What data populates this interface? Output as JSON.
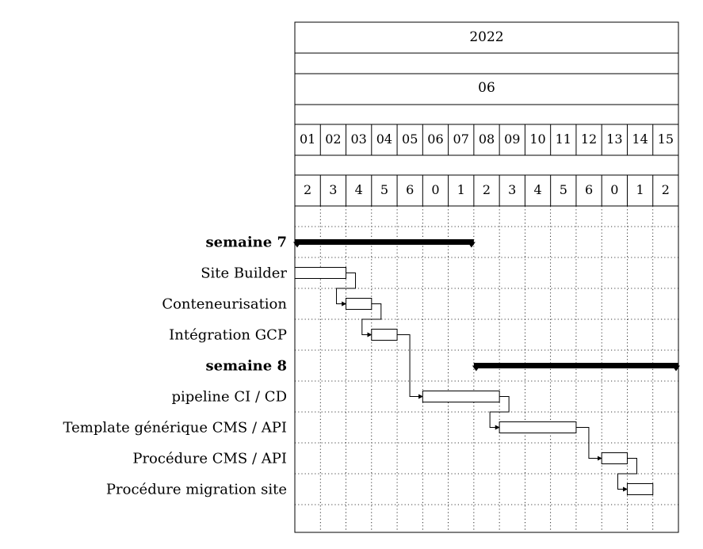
{
  "chart_data": {
    "type": "gantt",
    "header": {
      "year": "2022",
      "month": "06",
      "days": [
        "01",
        "02",
        "03",
        "04",
        "05",
        "06",
        "07",
        "08",
        "09",
        "10",
        "11",
        "12",
        "13",
        "14",
        "15"
      ],
      "weekdays": [
        "2",
        "3",
        "4",
        "5",
        "6",
        "0",
        "1",
        "2",
        "3",
        "4",
        "5",
        "6",
        "0",
        "1",
        "2"
      ]
    },
    "rows": [
      {
        "label": "semaine 7",
        "kind": "group",
        "start": 1,
        "end": 7
      },
      {
        "label": "Site Builder",
        "kind": "task",
        "start": 1,
        "end": 2
      },
      {
        "label": "Conteneurisation",
        "kind": "task",
        "start": 3,
        "end": 3
      },
      {
        "label": "Intégration GCP",
        "kind": "task",
        "start": 4,
        "end": 4
      },
      {
        "label": "semaine 8",
        "kind": "group",
        "start": 8,
        "end": 15
      },
      {
        "label": "pipeline CI / CD",
        "kind": "task",
        "start": 6,
        "end": 8
      },
      {
        "label": "Template générique CMS / API",
        "kind": "task",
        "start": 9,
        "end": 11
      },
      {
        "label": "Procédure CMS / API",
        "kind": "task",
        "start": 13,
        "end": 13
      },
      {
        "label": "Procédure migration site",
        "kind": "task",
        "start": 14,
        "end": 14
      }
    ],
    "links": [
      {
        "from": 1,
        "to": 2
      },
      {
        "from": 2,
        "to": 3
      },
      {
        "from": 3,
        "to": 5
      },
      {
        "from": 5,
        "to": 6
      },
      {
        "from": 6,
        "to": 7
      },
      {
        "from": 7,
        "to": 8
      }
    ]
  }
}
